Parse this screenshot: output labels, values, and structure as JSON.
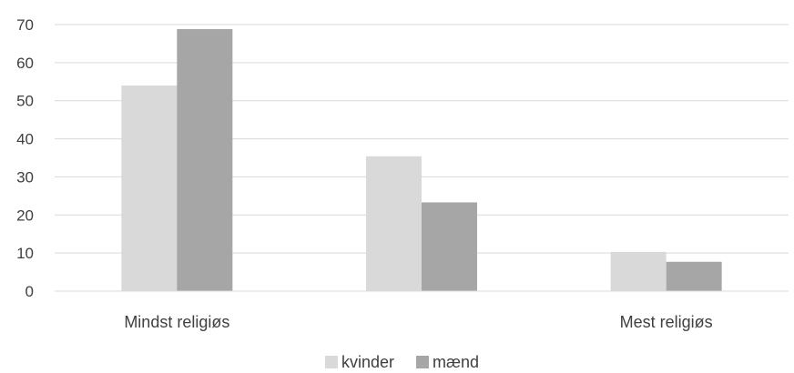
{
  "chart_data": {
    "type": "bar",
    "categories": [
      "Mindst religiøs",
      "",
      "Mest religiøs"
    ],
    "series": [
      {
        "name": "kvinder",
        "values": [
          54,
          35.4,
          10.3
        ],
        "color": "#d9d9d9"
      },
      {
        "name": "mænd",
        "values": [
          68.8,
          23.3,
          7.7
        ],
        "color": "#a6a6a6"
      }
    ],
    "y_ticks": [
      0,
      10,
      20,
      30,
      40,
      50,
      60,
      70
    ],
    "ylim": [
      0,
      70
    ],
    "grid": true,
    "legend_position": "bottom"
  }
}
